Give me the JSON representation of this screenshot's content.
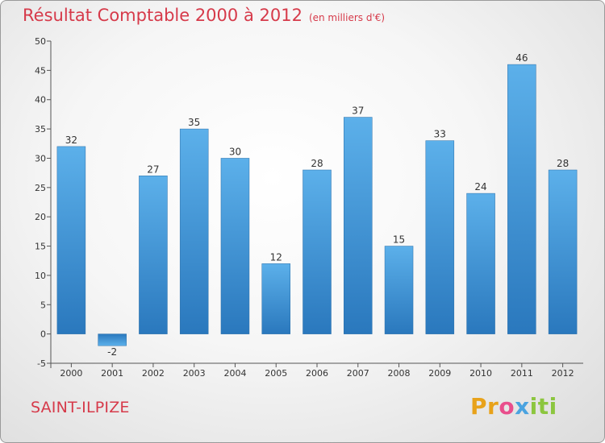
{
  "title": "Résultat Comptable 2000 à 2012",
  "subtitle": "(en milliers d'€)",
  "commune": "SAINT-ILPIZE",
  "logo": {
    "p1": "Pr",
    "p2": "o",
    "p3": "x",
    "p4": "iti"
  },
  "colors": {
    "title": "#d63a4a",
    "bar_light": "#5aaee8",
    "bar_dark": "#2a7bc0"
  },
  "chart_data": {
    "type": "bar",
    "title": "Résultat Comptable 2000 à 2012",
    "xlabel": "",
    "ylabel": "",
    "categories": [
      "2000",
      "2001",
      "2002",
      "2003",
      "2004",
      "2005",
      "2006",
      "2007",
      "2008",
      "2009",
      "2010",
      "2011",
      "2012"
    ],
    "values": [
      32,
      -2,
      27,
      35,
      30,
      12,
      28,
      37,
      15,
      33,
      24,
      46,
      28
    ],
    "ylim": [
      -5,
      50
    ],
    "yticks": [
      -5,
      0,
      5,
      10,
      15,
      20,
      25,
      30,
      35,
      40,
      45,
      50
    ],
    "grid": false
  }
}
